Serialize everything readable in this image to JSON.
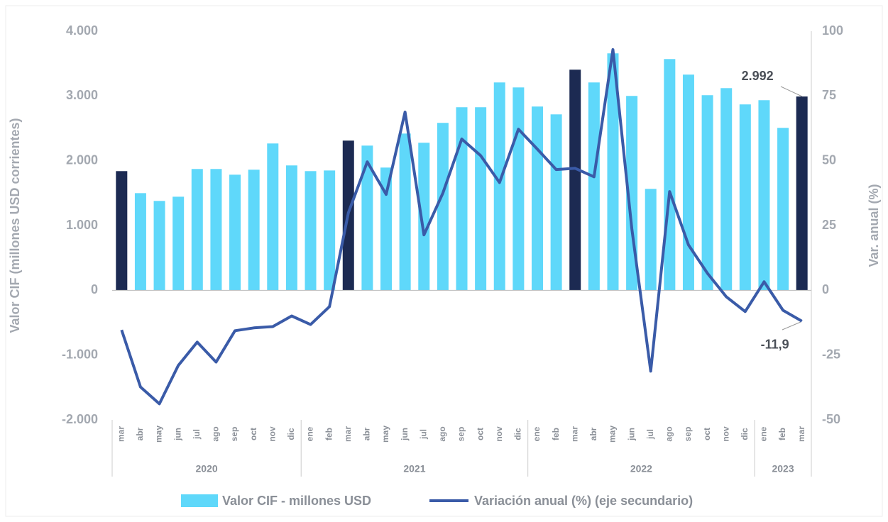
{
  "chart_data": {
    "type": "bar-line",
    "categories": [
      "mar",
      "abr",
      "may",
      "jun",
      "jul",
      "ago",
      "sep",
      "oct",
      "nov",
      "dic",
      "ene",
      "feb",
      "mar",
      "abr",
      "may",
      "jun",
      "jul",
      "ago",
      "sep",
      "oct",
      "nov",
      "dic",
      "ene",
      "feb",
      "mar",
      "abr",
      "may",
      "jun",
      "jul",
      "ago",
      "sep",
      "oct",
      "nov",
      "dic",
      "ene",
      "feb",
      "mar"
    ],
    "groups": [
      {
        "label": "2020",
        "count": 10
      },
      {
        "label": "2021",
        "count": 12
      },
      {
        "label": "2022",
        "count": 12
      },
      {
        "label": "2023",
        "count": 3
      }
    ],
    "ylabel": "Valor CIF (millones USD corrientes)",
    "y2label": "Var.  anual (%)",
    "ylim": [
      -2000,
      4000
    ],
    "yticks": [
      {
        "value": -2000,
        "label": "-2.000"
      },
      {
        "value": -1000,
        "label": "-1.000"
      },
      0,
      {
        "value": 1000,
        "label": "1.000"
      },
      {
        "value": 2000,
        "label": "2.000"
      },
      {
        "value": 3000,
        "label": "3.000"
      },
      {
        "value": 4000,
        "label": "4.000"
      }
    ],
    "y2lim": [
      -50,
      100
    ],
    "y2ticks": [
      -50,
      -25,
      0,
      25,
      50,
      75,
      100
    ],
    "series": [
      {
        "name": "Valor CIF - millones USD",
        "type": "bar",
        "color": "#5fd8fa",
        "colors": [
          "#1c2a52",
          "#5fd8fa",
          "#5fd8fa",
          "#5fd8fa",
          "#5fd8fa",
          "#5fd8fa",
          "#5fd8fa",
          "#5fd8fa",
          "#5fd8fa",
          "#5fd8fa",
          "#5fd8fa",
          "#5fd8fa",
          "#1c2a52",
          "#5fd8fa",
          "#5fd8fa",
          "#5fd8fa",
          "#5fd8fa",
          "#5fd8fa",
          "#5fd8fa",
          "#5fd8fa",
          "#5fd8fa",
          "#5fd8fa",
          "#5fd8fa",
          "#5fd8fa",
          "#1c2a52",
          "#5fd8fa",
          "#5fd8fa",
          "#5fd8fa",
          "#5fd8fa",
          "#5fd8fa",
          "#5fd8fa",
          "#5fd8fa",
          "#5fd8fa",
          "#5fd8fa",
          "#5fd8fa",
          "#5fd8fa",
          "#1c2a52"
        ],
        "values": [
          1840,
          1500,
          1380,
          1445,
          1873,
          1873,
          1785,
          1862,
          2267,
          1928,
          1840,
          1850,
          2311,
          2234,
          1895,
          2420,
          2278,
          2585,
          2826,
          2826,
          3209,
          3132,
          2837,
          2716,
          3406,
          3209,
          3658,
          3001,
          1566,
          3570,
          3330,
          3012,
          3121,
          2870,
          2935,
          2508,
          2992
        ],
        "value_labels": [
          null,
          null,
          null,
          null,
          null,
          null,
          null,
          null,
          null,
          null,
          null,
          null,
          null,
          null,
          null,
          null,
          null,
          null,
          null,
          null,
          null,
          null,
          null,
          null,
          null,
          null,
          null,
          null,
          null,
          null,
          null,
          null,
          null,
          null,
          null,
          null,
          "2.992"
        ]
      },
      {
        "name": "Variación anual (%) (eje secundario)",
        "type": "line",
        "axis": "y2",
        "color": "#3a5ba8",
        "values": [
          -15.3,
          -37.3,
          -43.8,
          -29,
          -20,
          -27.7,
          -15.6,
          -14.5,
          -14,
          -9.9,
          -13.2,
          -6.3,
          29.9,
          49.6,
          37,
          68.8,
          21.4,
          37.5,
          58.4,
          52,
          41.6,
          62.2,
          54.5,
          46.6,
          47.1,
          43.8,
          92.9,
          23.8,
          -31.2,
          38.1,
          17.5,
          6.6,
          -2.5,
          -8.2,
          3.3,
          -7.7,
          -11.9
        ],
        "value_labels": [
          null,
          null,
          null,
          null,
          null,
          null,
          null,
          null,
          null,
          null,
          null,
          null,
          null,
          null,
          null,
          null,
          null,
          null,
          null,
          null,
          null,
          null,
          null,
          null,
          null,
          null,
          null,
          null,
          null,
          null,
          null,
          null,
          null,
          null,
          null,
          null,
          "-11,9"
        ]
      }
    ]
  }
}
